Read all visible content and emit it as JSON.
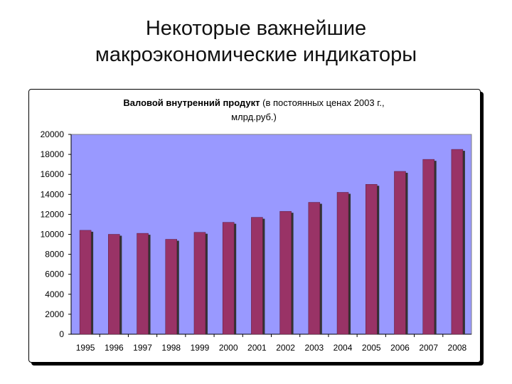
{
  "slide": {
    "title_line1": "Некоторые важнейшие",
    "title_line2": "макроэкономические индикаторы"
  },
  "chart_data": {
    "type": "bar",
    "title_bold": "Валовой внутренний продукт",
    "title_rest": " (в постоянных ценах 2003 г.,",
    "title_line2": "млрд.руб.)",
    "categories": [
      "1995",
      "1996",
      "1997",
      "1998",
      "1999",
      "2000",
      "2001",
      "2002",
      "2003",
      "2004",
      "2005",
      "2006",
      "2007",
      "2008"
    ],
    "values": [
      10400,
      10000,
      10100,
      9500,
      10200,
      11200,
      11700,
      12300,
      13200,
      14200,
      15000,
      16300,
      17500,
      18500
    ],
    "ylim": [
      0,
      20000
    ],
    "yticks": [
      0,
      2000,
      4000,
      6000,
      8000,
      10000,
      12000,
      14000,
      16000,
      18000,
      20000
    ],
    "xlabel": "",
    "ylabel": "",
    "grid": false,
    "legend": "none",
    "colors": {
      "plot_bg": "#9999ff",
      "bar": "#993366",
      "bar_shadow": "#333333"
    }
  }
}
